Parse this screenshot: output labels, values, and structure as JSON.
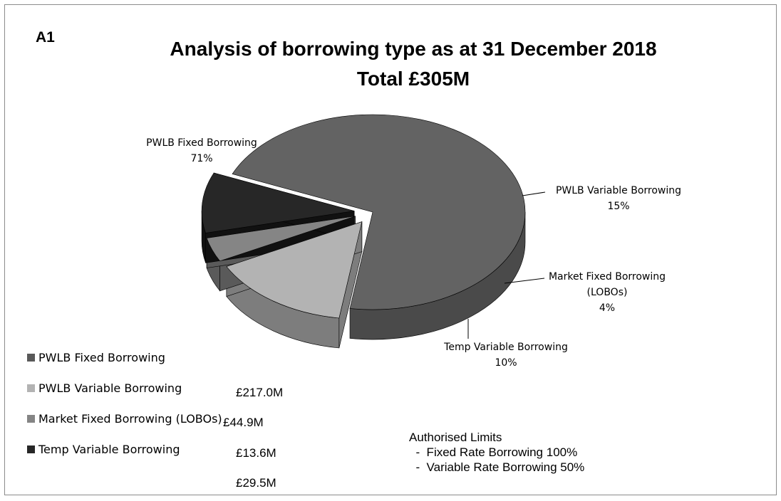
{
  "chart_data": {
    "type": "pie",
    "id_label": "A1",
    "title_line1": "Analysis of borrowing type as at 31 December 2018",
    "title_line2": "Total  £305M",
    "slices": [
      {
        "label": "PWLB Fixed Borrowing",
        "value": 71,
        "pct_label": "71%",
        "color": "#636363",
        "side": "#4a4a4a",
        "exploded": false
      },
      {
        "label": "PWLB Variable Borrowing",
        "value": 15,
        "pct_label": "15%",
        "color": "#b3b3b3",
        "side": "#7d7d7d",
        "exploded": true
      },
      {
        "label": "Market Fixed Borrowing",
        "label2": "(LOBOs)",
        "value": 4,
        "pct_label": "4%",
        "color": "#858585",
        "side": "#5a5a5a",
        "exploded": true
      },
      {
        "label": "Temp Variable Borrowing",
        "value": 10,
        "pct_label": "10%",
        "color": "#272727",
        "side": "#111111",
        "exploded": true
      }
    ],
    "legend": [
      {
        "label": "PWLB Fixed Borrowing",
        "color": "#595959"
      },
      {
        "label": "PWLB Variable Borrowing",
        "color": "#b3b3b3"
      },
      {
        "label": "Market Fixed Borrowing (LOBOs)",
        "color": "#858585"
      },
      {
        "label": "Temp Variable Borrowing",
        "color": "#272727"
      }
    ],
    "amounts": [
      "£217.0M",
      "£44.9M",
      "£13.6M",
      "£29.5M"
    ]
  },
  "limits": {
    "heading": "Authorised Limits",
    "rows": [
      "  -  Fixed Rate Borrowing 100%",
      "  -  Variable Rate Borrowing 50%"
    ]
  }
}
